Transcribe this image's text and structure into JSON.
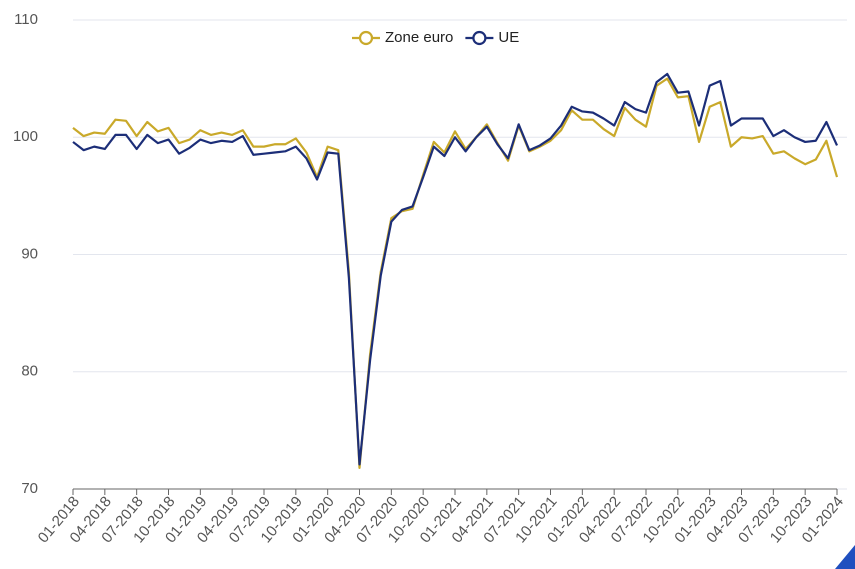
{
  "chart_data": {
    "type": "line",
    "categories": [
      "01-2018",
      null,
      null,
      "04-2018",
      null,
      null,
      "07-2018",
      null,
      null,
      "10-2018",
      null,
      null,
      "01-2019",
      null,
      null,
      "04-2019",
      null,
      null,
      "07-2019",
      null,
      null,
      "10-2019",
      null,
      null,
      "01-2020",
      null,
      null,
      "04-2020",
      null,
      null,
      "07-2020",
      null,
      null,
      "10-2020",
      null,
      null,
      "01-2021",
      null,
      null,
      "04-2021",
      null,
      null,
      "07-2021",
      null,
      null,
      "10-2021",
      null,
      null,
      "01-2022",
      null,
      null,
      "04-2022",
      null,
      null,
      "07-2022",
      null,
      null,
      "10-2022",
      null,
      null,
      "01-2023",
      null,
      null,
      "04-2023",
      null,
      null,
      "07-2023",
      null,
      null,
      "10-2023",
      null,
      null,
      "01-2024"
    ],
    "series": [
      {
        "name": "Zone euro",
        "color": "#c9a92a",
        "values": [
          100.8,
          100.1,
          100.4,
          100.3,
          101.5,
          101.4,
          100.1,
          101.3,
          100.5,
          100.8,
          99.5,
          99.8,
          100.6,
          100.2,
          100.4,
          100.2,
          100.6,
          99.2,
          99.2,
          99.4,
          99.4,
          99.9,
          98.7,
          96.6,
          99.2,
          98.9,
          88.5,
          71.8,
          81.5,
          88.5,
          93.1,
          93.7,
          93.9,
          96.8,
          99.6,
          98.7,
          100.5,
          99.0,
          100.0,
          101.1,
          99.5,
          98.0,
          101.0,
          98.8,
          99.2,
          99.7,
          100.6,
          102.3,
          101.5,
          101.5,
          100.7,
          100.1,
          102.5,
          101.5,
          100.9,
          104.4,
          105.0,
          103.4,
          103.5,
          99.6,
          102.6,
          103.0,
          99.2,
          100.0,
          99.9,
          100.1,
          98.6,
          98.8,
          98.2,
          97.7,
          98.1,
          99.7,
          96.6
        ]
      },
      {
        "name": "UE",
        "color": "#1c2e78",
        "values": [
          99.6,
          98.9,
          99.2,
          99.0,
          100.2,
          100.2,
          99.0,
          100.2,
          99.5,
          99.8,
          98.6,
          99.1,
          99.8,
          99.5,
          99.7,
          99.6,
          100.1,
          98.5,
          98.6,
          98.7,
          98.8,
          99.2,
          98.2,
          96.4,
          98.7,
          98.6,
          88.0,
          72.1,
          81.0,
          88.2,
          92.8,
          93.8,
          94.1,
          96.6,
          99.2,
          98.4,
          100.0,
          98.8,
          100.0,
          100.9,
          99.4,
          98.2,
          101.1,
          98.9,
          99.3,
          99.9,
          101.0,
          102.6,
          102.2,
          102.1,
          101.6,
          101.0,
          103.0,
          102.4,
          102.1,
          104.7,
          105.4,
          103.8,
          103.9,
          101.0,
          104.4,
          104.8,
          101.0,
          101.6,
          101.6,
          101.6,
          100.1,
          100.6,
          100.0,
          99.6,
          99.7,
          101.3,
          99.3
        ]
      }
    ],
    "ylim": [
      70,
      110
    ],
    "yticks": [
      70,
      80,
      90,
      100,
      110
    ],
    "grid": true,
    "legend": "top"
  }
}
